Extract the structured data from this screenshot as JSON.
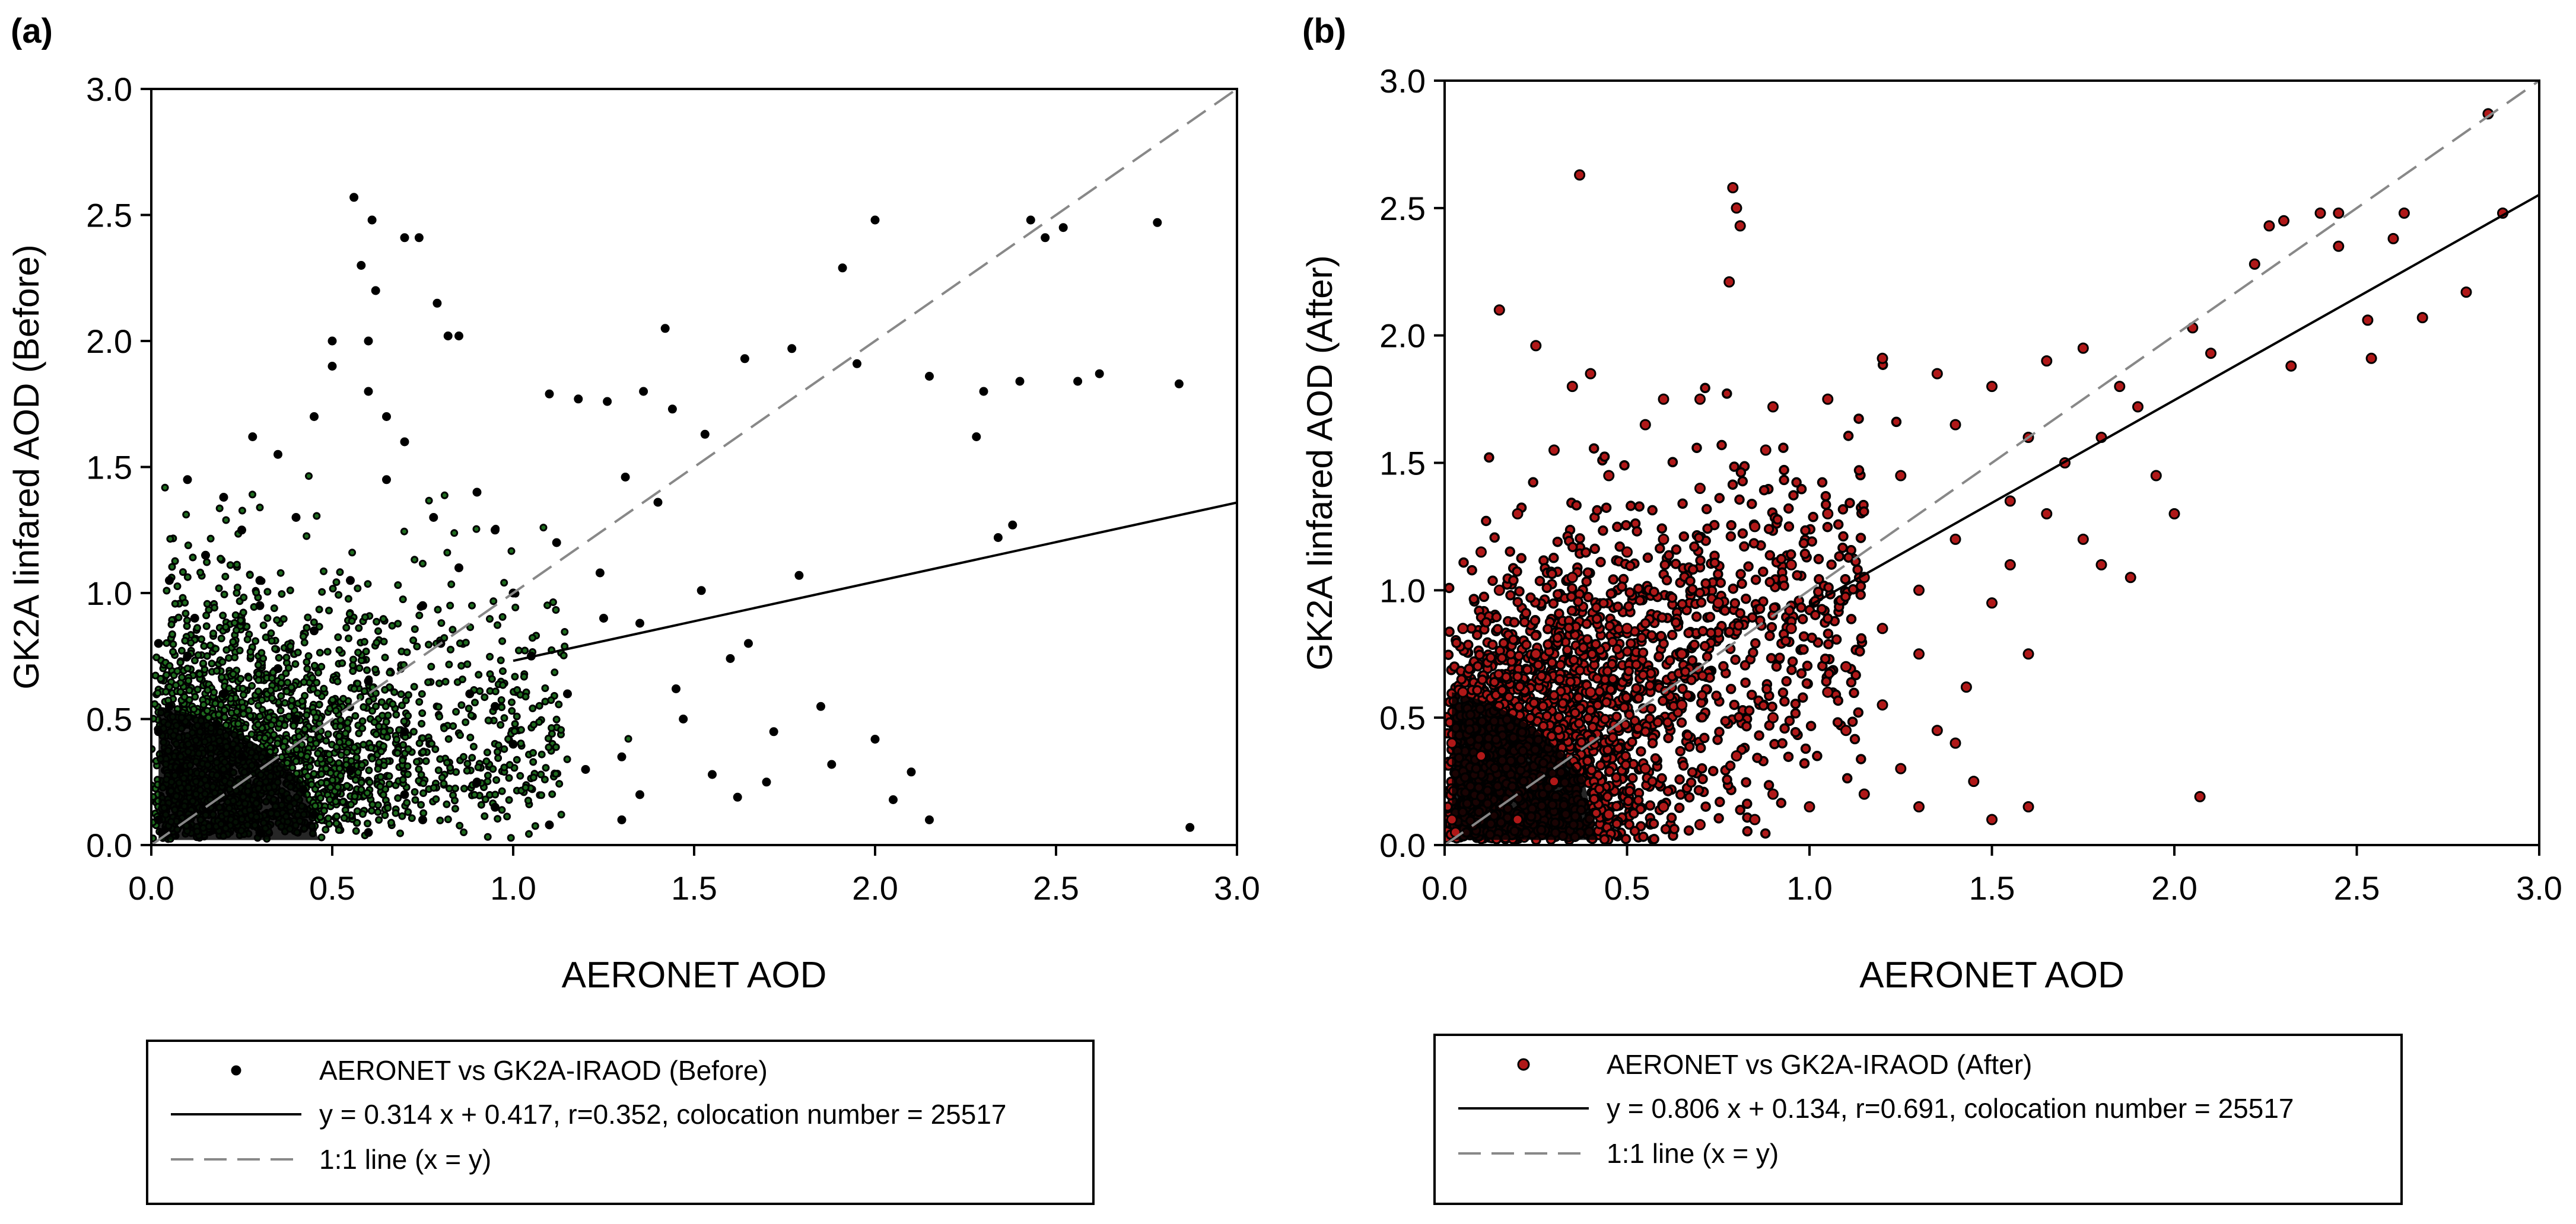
{
  "chart_data": [
    {
      "panel_label": "(a)",
      "type": "scatter",
      "title": "",
      "xlabel": "AERONET AOD",
      "ylabel": "GK2A Iinfared AOD (Before)",
      "xlim": [
        0.0,
        3.0
      ],
      "ylim": [
        0.0,
        3.0
      ],
      "x_ticks": [
        "0.0",
        "0.5",
        "1.0",
        "1.5",
        "2.0",
        "2.5",
        "3.0"
      ],
      "y_ticks": [
        "0.0",
        "0.5",
        "1.0",
        "1.5",
        "2.0",
        "2.5",
        "3.0"
      ],
      "grid": false,
      "point_color": "#1e6b1e",
      "point_edge_color": "#000000",
      "regression": {
        "slope": 0.314,
        "intercept": 0.417,
        "r": 0.352,
        "n": 25517
      },
      "series": [
        {
          "name": "AERONET vs GK2A-IRAOD (Before)",
          "points": [
            [
              0.56,
              2.57
            ],
            [
              0.61,
              2.48
            ],
            [
              0.7,
              2.41
            ],
            [
              0.74,
              2.41
            ],
            [
              0.79,
              2.15
            ],
            [
              0.82,
              2.02
            ],
            [
              0.85,
              2.02
            ],
            [
              1.42,
              2.05
            ],
            [
              1.64,
              1.93
            ],
            [
              1.77,
              1.97
            ],
            [
              1.91,
              2.29
            ],
            [
              2.0,
              2.48
            ],
            [
              1.95,
              1.91
            ],
            [
              2.15,
              1.86
            ],
            [
              2.28,
              1.62
            ],
            [
              2.3,
              1.8
            ],
            [
              2.34,
              1.22
            ],
            [
              2.38,
              1.27
            ],
            [
              2.4,
              1.84
            ],
            [
              2.43,
              2.48
            ],
            [
              2.47,
              2.41
            ],
            [
              2.52,
              2.45
            ],
            [
              2.56,
              1.84
            ],
            [
              2.62,
              1.87
            ],
            [
              2.78,
              2.47
            ],
            [
              2.84,
              1.83
            ],
            [
              2.87,
              0.07
            ],
            [
              1.31,
              1.46
            ],
            [
              1.24,
              1.08
            ],
            [
              1.1,
              1.79
            ],
            [
              1.18,
              1.77
            ],
            [
              1.26,
              1.76
            ],
            [
              1.36,
              1.8
            ],
            [
              1.44,
              1.73
            ],
            [
              1.53,
              1.63
            ],
            [
              1.4,
              1.36
            ],
            [
              1.52,
              1.01
            ],
            [
              1.35,
              0.88
            ],
            [
              1.6,
              0.74
            ],
            [
              1.47,
              0.5
            ],
            [
              1.72,
              0.45
            ],
            [
              1.79,
              1.07
            ],
            [
              1.55,
              0.28
            ],
            [
              1.88,
              0.32
            ],
            [
              2.1,
              0.29
            ],
            [
              2.0,
              0.42
            ],
            [
              2.15,
              0.1
            ],
            [
              1.62,
              0.19
            ],
            [
              1.3,
              0.35
            ],
            [
              0.2,
              1.38
            ],
            [
              0.28,
              1.62
            ],
            [
              0.35,
              1.55
            ],
            [
              0.45,
              1.7
            ],
            [
              0.6,
              1.8
            ],
            [
              0.5,
              1.9
            ],
            [
              0.7,
              1.6
            ],
            [
              0.9,
              1.4
            ],
            [
              0.95,
              1.25
            ],
            [
              0.15,
              1.15
            ],
            [
              0.05,
              1.05
            ],
            [
              0.1,
              1.45
            ],
            [
              0.25,
              1.25
            ],
            [
              0.4,
              1.3
            ],
            [
              0.65,
              1.45
            ],
            [
              0.85,
              1.1
            ],
            [
              0.75,
              0.95
            ],
            [
              0.55,
              1.05
            ],
            [
              0.3,
              0.95
            ],
            [
              0.12,
              0.9
            ],
            [
              0.45,
              0.85
            ],
            [
              0.8,
              0.8
            ],
            [
              1.05,
              0.75
            ],
            [
              1.15,
              0.6
            ],
            [
              0.95,
              0.55
            ],
            [
              0.6,
              0.65
            ],
            [
              0.35,
              0.7
            ],
            [
              0.2,
              0.6
            ],
            [
              0.05,
              0.55
            ],
            [
              0.1,
              0.75
            ],
            [
              0.4,
              0.5
            ],
            [
              0.7,
              0.45
            ],
            [
              1.0,
              0.4
            ],
            [
              1.2,
              0.3
            ],
            [
              0.9,
              0.25
            ],
            [
              0.55,
              0.3
            ],
            [
              0.25,
              0.35
            ],
            [
              0.08,
              0.3
            ],
            [
              0.15,
              0.15
            ],
            [
              0.45,
              0.12
            ],
            [
              0.75,
              0.1
            ],
            [
              1.1,
              0.08
            ],
            [
              1.3,
              0.1
            ],
            [
              0.3,
              0.05
            ],
            [
              0.6,
              0.05
            ],
            [
              0.02,
              0.1
            ],
            [
              0.02,
              0.45
            ],
            [
              0.02,
              0.8
            ],
            [
              0.03,
              0.05
            ],
            [
              0.5,
              2.0
            ],
            [
              0.65,
              1.7
            ],
            [
              0.78,
              1.3
            ],
            [
              0.88,
              0.6
            ],
            [
              1.0,
              1.0
            ],
            [
              1.12,
              1.2
            ],
            [
              1.25,
              0.9
            ],
            [
              1.45,
              0.62
            ],
            [
              1.65,
              0.8
            ],
            [
              1.7,
              0.25
            ],
            [
              1.85,
              0.55
            ],
            [
              2.05,
              0.18
            ],
            [
              0.3,
              1.05
            ],
            [
              0.18,
              0.48
            ],
            [
              0.42,
              0.22
            ],
            [
              0.7,
              0.2
            ],
            [
              0.95,
              0.15
            ],
            [
              1.35,
              0.2
            ],
            [
              0.58,
              2.3
            ],
            [
              0.62,
              2.2
            ],
            [
              0.6,
              2.0
            ]
          ]
        }
      ],
      "fit_line": {
        "label": "y = 0.314 x + 0.417, r=0.352, colocation number = 25517",
        "color": "#000000",
        "x_range": [
          1.0,
          3.0
        ]
      },
      "one_to_one_line": {
        "label": "1:1 line (x = y)",
        "color": "#888888",
        "x_range": [
          0.0,
          3.0
        ]
      },
      "legend": {
        "placement": "below",
        "entries": [
          "AERONET vs GK2A-IRAOD (Before)",
          "y = 0.314 x + 0.417, r=0.352, colocation number = 25517",
          "1:1 line (x = y)"
        ]
      }
    },
    {
      "panel_label": "(b)",
      "type": "scatter",
      "title": "",
      "xlabel": "AERONET AOD",
      "ylabel": "GK2A Iinfared AOD (After)",
      "xlim": [
        0.0,
        3.0
      ],
      "ylim": [
        0.0,
        3.0
      ],
      "x_ticks": [
        "0.0",
        "0.5",
        "1.0",
        "1.5",
        "2.0",
        "2.5",
        "3.0"
      ],
      "y_ticks": [
        "0.0",
        "0.5",
        "1.0",
        "1.5",
        "2.0",
        "2.5",
        "3.0"
      ],
      "grid": false,
      "point_color": "#b01818",
      "point_edge_color": "#000000",
      "regression": {
        "slope": 0.806,
        "intercept": 0.134,
        "r": 0.691,
        "n": 25517
      },
      "series": [
        {
          "name": "AERONET vs GK2A-IRAOD (After)",
          "points": [
            [
              0.37,
              2.63
            ],
            [
              0.79,
              2.58
            ],
            [
              0.8,
              2.5
            ],
            [
              0.81,
              2.43
            ],
            [
              0.78,
              2.21
            ],
            [
              0.15,
              2.1
            ],
            [
              0.25,
              1.96
            ],
            [
              0.4,
              1.85
            ],
            [
              0.6,
              1.75
            ],
            [
              0.9,
              1.72
            ],
            [
              1.05,
              1.75
            ],
            [
              1.2,
              1.91
            ],
            [
              1.35,
              1.85
            ],
            [
              1.5,
              1.8
            ],
            [
              1.65,
              1.9
            ],
            [
              1.75,
              1.95
            ],
            [
              1.85,
              1.8
            ],
            [
              1.9,
              1.72
            ],
            [
              2.05,
              2.03
            ],
            [
              2.1,
              1.93
            ],
            [
              2.22,
              2.28
            ],
            [
              2.26,
              2.43
            ],
            [
              2.3,
              2.45
            ],
            [
              2.32,
              1.88
            ],
            [
              2.4,
              2.48
            ],
            [
              2.45,
              2.48
            ],
            [
              2.45,
              2.35
            ],
            [
              2.53,
              2.06
            ],
            [
              2.54,
              1.91
            ],
            [
              2.6,
              2.38
            ],
            [
              2.63,
              2.48
            ],
            [
              2.68,
              2.07
            ],
            [
              2.8,
              2.17
            ],
            [
              2.86,
              2.87
            ],
            [
              2.9,
              2.48
            ],
            [
              2.07,
              0.19
            ],
            [
              1.6,
              0.15
            ],
            [
              1.5,
              0.1
            ],
            [
              1.43,
              0.62
            ],
            [
              1.6,
              0.75
            ],
            [
              1.75,
              1.2
            ],
            [
              1.8,
              1.1
            ],
            [
              1.88,
              1.05
            ],
            [
              1.95,
              1.45
            ],
            [
              2.0,
              1.3
            ],
            [
              1.7,
              1.5
            ],
            [
              1.55,
              1.35
            ],
            [
              1.4,
              1.2
            ],
            [
              1.3,
              1.0
            ],
            [
              1.2,
              0.85
            ],
            [
              1.1,
              0.7
            ],
            [
              1.35,
              0.45
            ],
            [
              1.25,
              0.3
            ],
            [
              1.15,
              0.2
            ],
            [
              1.0,
              0.15
            ],
            [
              0.85,
              0.1
            ],
            [
              1.45,
              0.25
            ],
            [
              0.2,
              1.3
            ],
            [
              0.3,
              1.55
            ],
            [
              0.45,
              1.45
            ],
            [
              0.55,
              1.65
            ],
            [
              0.7,
              1.4
            ],
            [
              0.85,
              1.25
            ],
            [
              0.95,
              1.1
            ],
            [
              1.05,
              1.3
            ],
            [
              0.15,
              1.0
            ],
            [
              0.05,
              0.85
            ],
            [
              0.1,
              1.15
            ],
            [
              0.35,
              1.05
            ],
            [
              0.6,
              1.2
            ],
            [
              0.75,
              0.95
            ],
            [
              0.5,
              0.85
            ],
            [
              0.25,
              0.75
            ],
            [
              0.4,
              0.6
            ],
            [
              0.65,
              0.55
            ],
            [
              0.9,
              0.5
            ],
            [
              1.1,
              0.45
            ],
            [
              0.8,
              0.35
            ],
            [
              0.55,
              0.3
            ],
            [
              0.3,
              0.25
            ],
            [
              0.1,
              0.35
            ],
            [
              0.05,
              0.6
            ],
            [
              0.2,
              0.1
            ],
            [
              0.45,
              0.12
            ],
            [
              0.7,
              0.08
            ],
            [
              0.02,
              0.1
            ],
            [
              0.02,
              0.4
            ],
            [
              0.03,
              0.05
            ],
            [
              0.95,
              0.85
            ],
            [
              1.15,
              1.05
            ],
            [
              1.25,
              1.45
            ],
            [
              1.6,
              1.6
            ],
            [
              1.4,
              1.65
            ],
            [
              0.88,
              1.55
            ],
            [
              0.7,
              1.75
            ],
            [
              0.35,
              1.8
            ],
            [
              0.5,
              1.15
            ],
            [
              0.65,
              0.75
            ],
            [
              1.05,
              0.6
            ],
            [
              1.2,
              0.55
            ],
            [
              1.55,
              1.1
            ],
            [
              1.65,
              1.3
            ],
            [
              1.8,
              1.6
            ],
            [
              1.5,
              0.95
            ],
            [
              1.3,
              0.75
            ],
            [
              0.6,
              0.15
            ],
            [
              0.9,
              0.2
            ],
            [
              1.3,
              0.15
            ],
            [
              1.4,
              0.4
            ]
          ]
        }
      ],
      "fit_line": {
        "label": "y = 0.806 x + 0.134, r=0.691, colocation number = 25517",
        "color": "#000000",
        "x_range": [
          1.0,
          3.0
        ]
      },
      "one_to_one_line": {
        "label": "1:1 line (x = y)",
        "color": "#888888",
        "x_range": [
          0.0,
          3.0
        ]
      },
      "legend": {
        "placement": "below",
        "entries": [
          "AERONET vs GK2A-IRAOD (After)",
          "y = 0.806 x + 0.134, r=0.691, colocation number = 25517",
          "1:1 line (x = y)"
        ]
      }
    }
  ]
}
